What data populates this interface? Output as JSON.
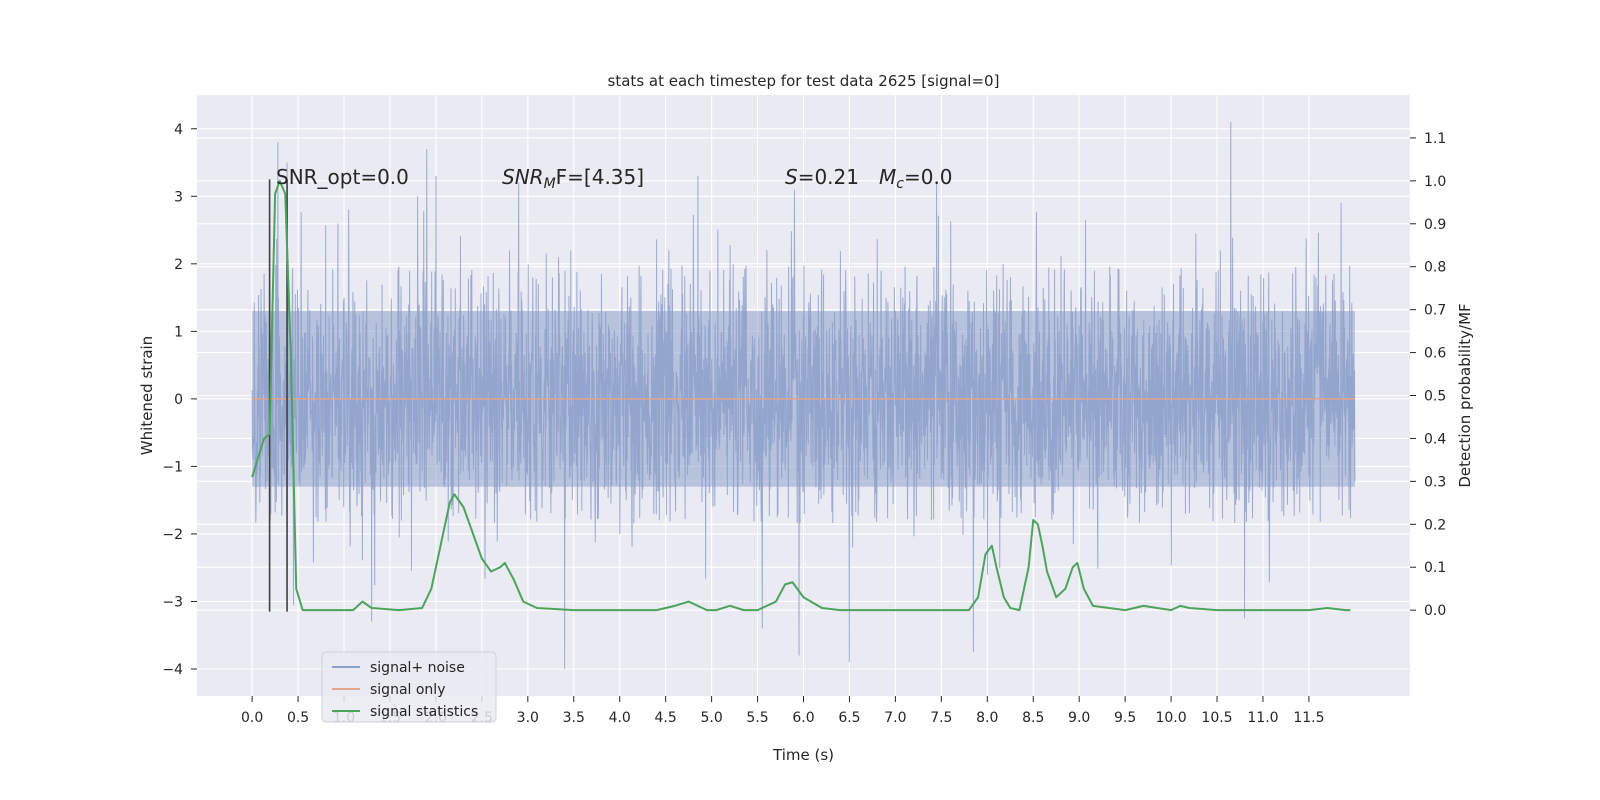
{
  "chart_data": {
    "type": "line",
    "title": "stats at each timestep for test data 2625 [signal=0]",
    "xlabel": "Time (s)",
    "ylabel_left": "Whitened strain",
    "ylabel_right": "Detection probability/MF",
    "xlim": [
      -0.6,
      12.6
    ],
    "ylim_left": [
      -4.4,
      4.5
    ],
    "ylim_right": [
      -0.2,
      1.2
    ],
    "x_ticks": [
      "0.0",
      "0.5",
      "1.0",
      "1.5",
      "2.0",
      "2.5",
      "3.0",
      "3.5",
      "4.0",
      "4.5",
      "5.0",
      "5.5",
      "6.0",
      "6.5",
      "7.0",
      "7.5",
      "8.0",
      "8.5",
      "9.0",
      "9.5",
      "10.0",
      "10.5",
      "11.0",
      "11.5"
    ],
    "y_ticks_left": [
      "−4",
      "−3",
      "−2",
      "−1",
      "0",
      "1",
      "2",
      "3",
      "4"
    ],
    "y_ticks_right": [
      "0.0",
      "0.1",
      "0.2",
      "0.3",
      "0.4",
      "0.5",
      "0.6",
      "0.7",
      "0.8",
      "0.9",
      "1.0",
      "1.1"
    ],
    "annotations": {
      "snr_opt": "SNR_opt=0.0",
      "snr_mf_label": "SNR",
      "snr_mf_sub": "M",
      "snr_mf_rest": "F=[4.35]",
      "s_label": "S",
      "s_value": "=0.21",
      "mc_label": "M",
      "mc_sub": "c",
      "mc_value": "=0.0"
    },
    "legend": {
      "position": "lower-left",
      "entries": [
        {
          "label": "signal+ noise",
          "color": "#8da0cb"
        },
        {
          "label": "signal only",
          "color": "#e5a58a"
        },
        {
          "label": "signal statistics",
          "color": "#4da35c"
        }
      ]
    },
    "noise": {
      "x_range": [
        0.0,
        12.0
      ],
      "typical_abs": 1.3,
      "core_max": 2.0,
      "core_min": -1.85,
      "peaks": [
        {
          "x": 0.28,
          "y": 3.8
        },
        {
          "x": 0.38,
          "y": 3.5
        },
        {
          "x": 1.05,
          "y": 2.8
        },
        {
          "x": 1.8,
          "y": 3.0
        },
        {
          "x": 1.9,
          "y": 3.7
        },
        {
          "x": 2.0,
          "y": 3.3
        },
        {
          "x": 2.9,
          "y": 3.2
        },
        {
          "x": 4.85,
          "y": 3.3
        },
        {
          "x": 5.9,
          "y": 3.1
        },
        {
          "x": 7.45,
          "y": 3.2
        },
        {
          "x": 10.65,
          "y": 4.1
        },
        {
          "x": 11.85,
          "y": 2.9
        }
      ],
      "troughs": [
        {
          "x": 0.45,
          "y": -3.05
        },
        {
          "x": 1.3,
          "y": -3.3
        },
        {
          "x": 3.4,
          "y": -4.0
        },
        {
          "x": 5.55,
          "y": -3.4
        },
        {
          "x": 5.95,
          "y": -3.8
        },
        {
          "x": 6.5,
          "y": -3.9
        },
        {
          "x": 7.85,
          "y": -3.75
        },
        {
          "x": 10.8,
          "y": -3.25
        }
      ]
    },
    "signal_only": {
      "x": [
        0.0,
        12.0
      ],
      "y": [
        0.0,
        0.0
      ]
    },
    "signal_statistics": {
      "x": [
        0.0,
        0.13,
        0.19,
        0.25,
        0.3,
        0.36,
        0.42,
        0.48,
        0.55,
        0.6,
        0.7,
        0.9,
        1.1,
        1.2,
        1.3,
        1.6,
        1.85,
        1.95,
        2.05,
        2.15,
        2.2,
        2.3,
        2.4,
        2.5,
        2.6,
        2.7,
        2.75,
        2.85,
        2.95,
        3.1,
        3.5,
        4.0,
        4.4,
        4.6,
        4.75,
        4.85,
        4.95,
        5.05,
        5.2,
        5.35,
        5.5,
        5.7,
        5.8,
        5.88,
        6.0,
        6.2,
        6.4,
        7.0,
        7.5,
        7.8,
        7.9,
        7.98,
        8.05,
        8.1,
        8.18,
        8.25,
        8.35,
        8.45,
        8.5,
        8.55,
        8.6,
        8.65,
        8.75,
        8.85,
        8.93,
        8.98,
        9.05,
        9.15,
        9.5,
        9.7,
        10.0,
        10.1,
        10.2,
        10.5,
        11.5,
        11.7,
        11.9,
        11.95
      ],
      "y": [
        0.31,
        0.4,
        0.41,
        0.97,
        1.0,
        0.97,
        0.6,
        0.05,
        0.0,
        0.0,
        0.0,
        0.0,
        0.0,
        0.02,
        0.005,
        0.0,
        0.005,
        0.05,
        0.15,
        0.25,
        0.27,
        0.24,
        0.18,
        0.12,
        0.09,
        0.1,
        0.11,
        0.07,
        0.02,
        0.005,
        0.0,
        0.0,
        0.0,
        0.01,
        0.02,
        0.01,
        0.0,
        0.0,
        0.01,
        0.0,
        0.0,
        0.02,
        0.06,
        0.065,
        0.03,
        0.005,
        0.0,
        0.0,
        0.0,
        0.0,
        0.03,
        0.13,
        0.15,
        0.1,
        0.03,
        0.005,
        0.0,
        0.1,
        0.21,
        0.2,
        0.15,
        0.09,
        0.03,
        0.05,
        0.1,
        0.11,
        0.05,
        0.01,
        0.0,
        0.01,
        0.0,
        0.01,
        0.005,
        0.0,
        0.0,
        0.005,
        0.0,
        0.0
      ]
    },
    "vertical_lines": [
      {
        "x": 0.19,
        "y_top": 3.25,
        "y_bottom": -3.15
      },
      {
        "x": 0.38,
        "y_top": 3.25,
        "y_bottom": -3.15
      }
    ],
    "grid": true,
    "colors": {
      "plot_background": "#eaeaf2",
      "grid": "#ffffff",
      "noise": "#8da0cb",
      "signal": "#e5a58a",
      "stats": "#4da35c",
      "vline": "#404040"
    }
  }
}
